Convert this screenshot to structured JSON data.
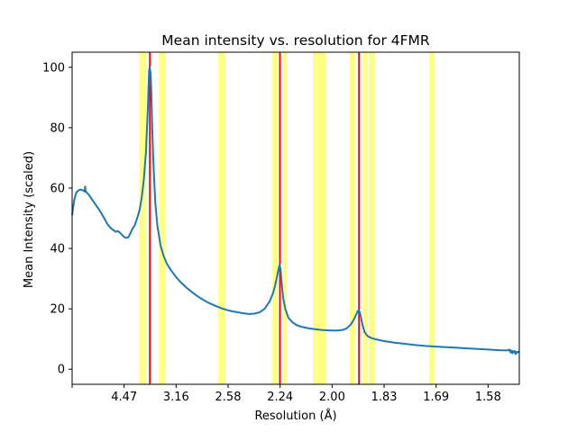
{
  "chart_data": {
    "type": "line",
    "title": "Mean intensity vs. resolution for 4FMR",
    "xlabel": "Resolution (Å)",
    "ylabel": "Mean Intensity (scaled)",
    "x_scale": "inverse-square-resolution",
    "xlim": [
      0.0,
      0.43
    ],
    "ylim": [
      -5,
      105
    ],
    "x_ticks": [
      {
        "value": 0.0,
        "label": ""
      },
      {
        "value": 0.05,
        "label": "4.47"
      },
      {
        "value": 0.1,
        "label": "3.16"
      },
      {
        "value": 0.15,
        "label": "2.58"
      },
      {
        "value": 0.2,
        "label": "2.24"
      },
      {
        "value": 0.25,
        "label": "2.00"
      },
      {
        "value": 0.3,
        "label": "1.83"
      },
      {
        "value": 0.35,
        "label": "1.69"
      },
      {
        "value": 0.4,
        "label": "1.58"
      }
    ],
    "y_ticks": [
      0,
      20,
      40,
      60,
      80,
      100
    ],
    "grid": false,
    "colors": {
      "line": "#1f77b4",
      "peak_marker": "#ff0000",
      "band": "#ffff80"
    },
    "peak_markers_x": [
      0.0747,
      0.1998,
      0.2758
    ],
    "shaded_bands": [
      [
        0.0645,
        0.0712
      ],
      [
        0.0835,
        0.0892
      ],
      [
        0.1405,
        0.1465
      ],
      [
        0.1925,
        0.1968
      ],
      [
        0.2023,
        0.2063
      ],
      [
        0.2315,
        0.2435
      ],
      [
        0.267,
        0.2715
      ],
      [
        0.2795,
        0.284
      ],
      [
        0.2852,
        0.291
      ],
      [
        0.3435,
        0.3485
      ]
    ],
    "series": [
      {
        "x": [
          0.0,
          0.002,
          0.004,
          0.006,
          0.008,
          0.01,
          0.012,
          0.0125,
          0.013,
          0.014,
          0.016,
          0.018,
          0.02,
          0.022,
          0.024,
          0.026,
          0.028,
          0.03,
          0.032,
          0.034,
          0.036,
          0.038,
          0.04,
          0.042,
          0.044,
          0.046,
          0.048,
          0.05,
          0.052,
          0.054,
          0.056,
          0.058,
          0.06,
          0.061,
          0.062,
          0.063,
          0.065,
          0.067,
          0.069,
          0.071,
          0.072,
          0.073,
          0.0735,
          0.074,
          0.0745,
          0.0755,
          0.076,
          0.0765,
          0.077,
          0.078,
          0.079,
          0.08,
          0.082,
          0.085,
          0.088,
          0.091,
          0.095,
          0.1,
          0.105,
          0.11,
          0.115,
          0.12,
          0.125,
          0.13,
          0.135,
          0.14,
          0.145,
          0.15,
          0.155,
          0.16,
          0.165,
          0.17,
          0.175,
          0.18,
          0.185,
          0.19,
          0.193,
          0.195,
          0.197,
          0.198,
          0.199,
          0.1995,
          0.2005,
          0.201,
          0.202,
          0.203,
          0.205,
          0.208,
          0.212,
          0.216,
          0.22,
          0.225,
          0.23,
          0.235,
          0.24,
          0.245,
          0.25,
          0.255,
          0.26,
          0.264,
          0.268,
          0.271,
          0.273,
          0.2745,
          0.2755,
          0.2765,
          0.2775,
          0.279,
          0.281,
          0.284,
          0.288,
          0.292,
          0.296,
          0.3,
          0.31,
          0.32,
          0.33,
          0.34,
          0.35,
          0.36,
          0.37,
          0.38,
          0.39,
          0.4,
          0.41,
          0.418,
          0.4205,
          0.421,
          0.4215,
          0.422,
          0.423,
          0.4235,
          0.424,
          0.425,
          0.4255,
          0.4265,
          0.427,
          0.428,
          0.429,
          0.4298
        ],
        "y": [
          51,
          56,
          58.5,
          59.2,
          59.5,
          59.3,
          58.8,
          60.5,
          59.0,
          58.5,
          57.8,
          56.8,
          55.8,
          54.8,
          53.8,
          52.8,
          51.7,
          50.5,
          49.3,
          48.0,
          47.2,
          46.5,
          46.0,
          45.5,
          45.8,
          45.2,
          44.5,
          43.8,
          43.5,
          43.7,
          45.0,
          46.5,
          47.5,
          48.5,
          49.5,
          50.5,
          53.0,
          57.0,
          63.0,
          72.0,
          80.0,
          88.0,
          94.0,
          99.0,
          100.0,
          98.0,
          93.0,
          87.0,
          80.0,
          70.0,
          62.0,
          55.0,
          47.5,
          41.0,
          37.5,
          35.0,
          32.8,
          30.5,
          28.6,
          27.0,
          25.6,
          24.3,
          23.2,
          22.2,
          21.4,
          20.7,
          20.0,
          19.5,
          19.1,
          18.8,
          18.5,
          18.3,
          18.4,
          18.8,
          20.0,
          22.5,
          25.0,
          27.5,
          30.5,
          32.5,
          34.0,
          34.5,
          33.0,
          30.5,
          26.5,
          23.5,
          20.0,
          17.0,
          15.5,
          14.6,
          14.1,
          13.7,
          13.4,
          13.2,
          13.0,
          12.9,
          12.8,
          12.8,
          13.0,
          13.5,
          14.8,
          16.5,
          18.0,
          19.2,
          19.5,
          19.0,
          17.5,
          15.0,
          12.5,
          11.0,
          10.3,
          9.9,
          9.6,
          9.3,
          8.8,
          8.4,
          8.0,
          7.7,
          7.5,
          7.3,
          7.1,
          6.9,
          6.7,
          6.5,
          6.3,
          6.2,
          6.5,
          5.8,
          6.3,
          5.5,
          6.1,
          5.3,
          5.9,
          5.6,
          6.0,
          5.0,
          5.8,
          5.5,
          5.8,
          5.6
        ]
      }
    ]
  }
}
